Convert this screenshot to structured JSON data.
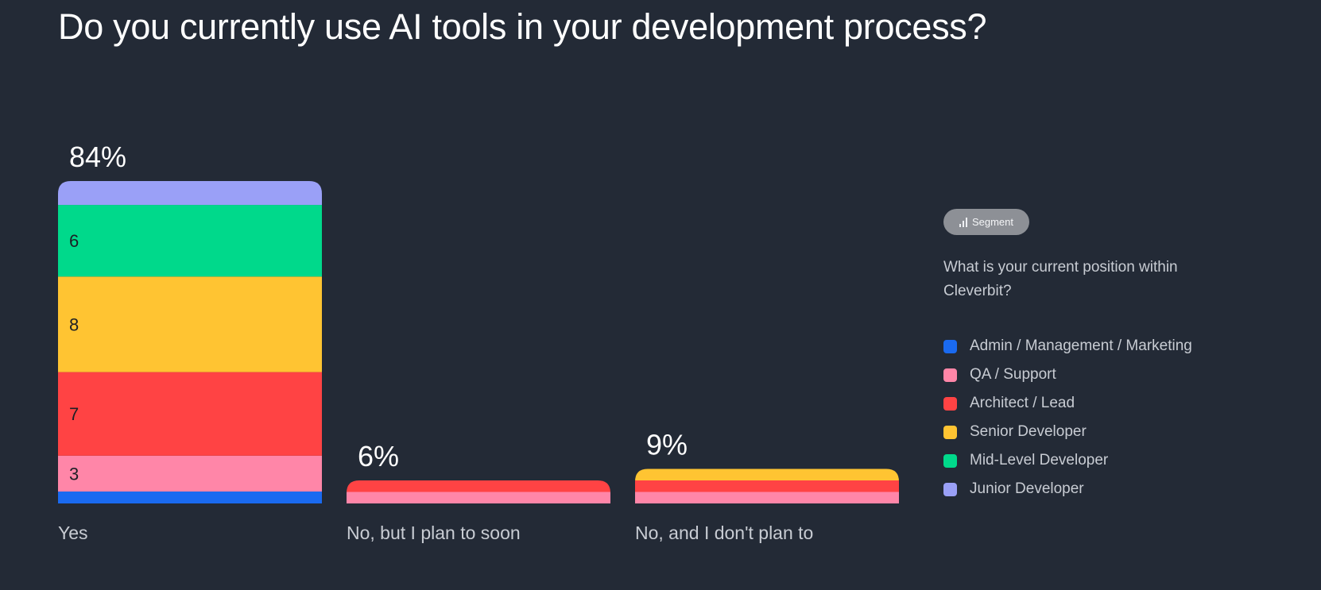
{
  "title": "Do you currently use AI tools in your development process?",
  "segment": {
    "button_label": "Segment",
    "icon": "bar-chart-icon",
    "question": "What is your current position within Cleverbit?"
  },
  "colors": {
    "background": "#232a36",
    "Admin / Management / Marketing": "#1a6af0",
    "QA / Support": "#ff86a8",
    "Architect / Lead": "#ff4344",
    "Senior Developer": "#ffc432",
    "Mid-Level Developer": "#00d98b",
    "Junior Developer": "#9aa0f7"
  },
  "chart_data": {
    "type": "bar",
    "stacked": true,
    "title": "Do you currently use AI tools in your development process?",
    "categories": [
      "Yes",
      "No, but I plan to soon",
      "No, and I don't plan to"
    ],
    "totals_label": [
      "84%",
      "6%",
      "9%"
    ],
    "totals_percent": [
      84,
      6,
      9
    ],
    "series": [
      {
        "name": "Admin / Management / Marketing",
        "color": "#1a6af0",
        "values": [
          1,
          0,
          0
        ],
        "labels": [
          "",
          "",
          ""
        ]
      },
      {
        "name": "QA / Support",
        "color": "#ff86a8",
        "values": [
          3,
          1,
          1
        ],
        "labels": [
          "3",
          "",
          ""
        ]
      },
      {
        "name": "Architect / Lead",
        "color": "#ff4344",
        "values": [
          7,
          1,
          1
        ],
        "labels": [
          "7",
          "",
          ""
        ]
      },
      {
        "name": "Senior Developer",
        "color": "#ffc432",
        "values": [
          8,
          0,
          1
        ],
        "labels": [
          "8",
          "",
          ""
        ]
      },
      {
        "name": "Mid-Level Developer",
        "color": "#00d98b",
        "values": [
          6,
          0,
          0
        ],
        "labels": [
          "6",
          "",
          ""
        ]
      },
      {
        "name": "Junior Developer",
        "color": "#9aa0f7",
        "values": [
          2,
          0,
          0
        ],
        "labels": [
          "",
          "",
          ""
        ]
      }
    ],
    "legend_position": "right",
    "grid": false
  }
}
